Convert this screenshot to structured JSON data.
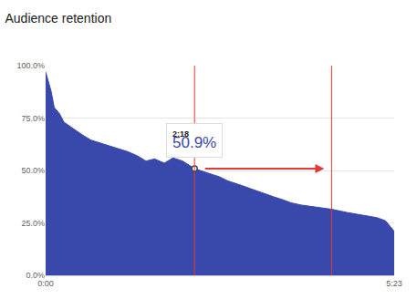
{
  "chart_data": {
    "type": "area",
    "title": "Audience retention",
    "x": [
      0,
      2,
      5,
      8,
      13,
      17,
      25,
      34,
      42,
      51,
      59,
      68,
      76,
      85,
      93,
      101,
      110,
      118,
      127,
      138,
      144,
      152,
      161,
      169,
      178,
      186,
      194,
      203,
      211,
      220,
      228,
      237,
      245,
      254,
      265,
      279,
      296,
      307,
      315,
      323
    ],
    "values": [
      97,
      93,
      88,
      80,
      77,
      73,
      70,
      67,
      64.5,
      63,
      61.5,
      60,
      59,
      57,
      54.5,
      55.5,
      53.5,
      56,
      54.5,
      50.9,
      50,
      48.5,
      47,
      45,
      43.5,
      42,
      40.5,
      39,
      37.5,
      36,
      34.5,
      33.5,
      33,
      32.5,
      31.5,
      30,
      28.5,
      27.5,
      26,
      21
    ],
    "color": "#3949ab",
    "xlim": [
      0,
      323
    ],
    "xticks": [
      {
        "value": 0,
        "label": "0:00"
      },
      {
        "value": 323,
        "label": "5:23"
      }
    ],
    "ylim": [
      0,
      100
    ],
    "yticks": [
      {
        "value": 0,
        "label": "0.0%"
      },
      {
        "value": 25,
        "label": "25.0%"
      },
      {
        "value": 50,
        "label": "50.0%"
      },
      {
        "value": 75,
        "label": "75.0%"
      },
      {
        "value": 100,
        "label": "100.0%"
      }
    ],
    "grid": true,
    "annotations": [
      {
        "x": 138,
        "y": 50.9,
        "label": "2:18",
        "text": "50.9%"
      }
    ],
    "reference_lines": {
      "x": [
        138,
        265
      ],
      "color": "#e53935"
    }
  }
}
